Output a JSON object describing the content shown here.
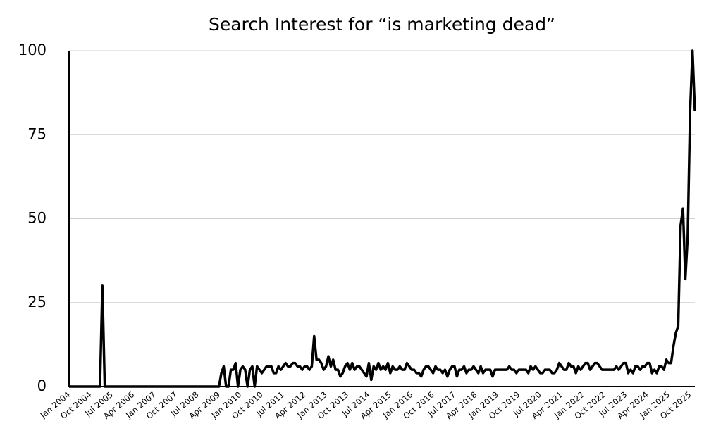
{
  "chart_data": {
    "type": "line",
    "title": "Search Interest for “is marketing dead”",
    "categories": [
      "Jan 2004",
      null,
      null,
      null,
      null,
      null,
      null,
      null,
      null,
      "Oct 2004",
      null,
      null,
      null,
      null,
      null,
      null,
      null,
      null,
      "Jul 2005",
      null,
      null,
      null,
      null,
      null,
      null,
      null,
      null,
      "Apr 2006",
      null,
      null,
      null,
      null,
      null,
      null,
      null,
      null,
      "Jan 2007",
      null,
      null,
      null,
      null,
      null,
      null,
      null,
      null,
      "Oct 2007",
      null,
      null,
      null,
      null,
      null,
      null,
      null,
      null,
      "Jul 2008",
      null,
      null,
      null,
      null,
      null,
      null,
      null,
      null,
      "Apr 2009",
      null,
      null,
      null,
      null,
      null,
      null,
      null,
      null,
      "Jan 2010",
      null,
      null,
      null,
      null,
      null,
      null,
      null,
      null,
      "Oct 2010",
      null,
      null,
      null,
      null,
      null,
      null,
      null,
      null,
      "Jul 2011",
      null,
      null,
      null,
      null,
      null,
      null,
      null,
      null,
      "Apr 2012",
      null,
      null,
      null,
      null,
      null,
      null,
      null,
      null,
      "Jan 2013",
      null,
      null,
      null,
      null,
      null,
      null,
      null,
      null,
      "Oct 2013",
      null,
      null,
      null,
      null,
      null,
      null,
      null,
      null,
      "Jul 2014",
      null,
      null,
      null,
      null,
      null,
      null,
      null,
      null,
      "Apr 2015",
      null,
      null,
      null,
      null,
      null,
      null,
      null,
      null,
      "Jan 2016",
      null,
      null,
      null,
      null,
      null,
      null,
      null,
      null,
      "Oct 2016",
      null,
      null,
      null,
      null,
      null,
      null,
      null,
      null,
      "Jul 2017",
      null,
      null,
      null,
      null,
      null,
      null,
      null,
      null,
      "Apr 2018",
      null,
      null,
      null,
      null,
      null,
      null,
      null,
      null,
      "Jan 2019",
      null,
      null,
      null,
      null,
      null,
      null,
      null,
      null,
      "Oct 2019",
      null,
      null,
      null,
      null,
      null,
      null,
      null,
      null,
      "Jul 2020",
      null,
      null,
      null,
      null,
      null,
      null,
      null,
      null,
      "Apr 2021",
      null,
      null,
      null,
      null,
      null,
      null,
      null,
      null,
      "Jan 2022",
      null,
      null,
      null,
      null,
      null,
      null,
      null,
      null,
      "Oct 2022",
      null,
      null,
      null,
      null,
      null,
      null,
      null,
      null,
      "Jul 2023",
      null,
      null,
      null,
      null,
      null,
      null,
      null,
      null,
      "Apr 2024",
      null,
      null,
      null,
      null,
      null,
      null,
      null,
      null,
      "Jan 2025",
      null,
      null,
      null,
      null,
      null,
      null,
      null,
      null,
      "Oct 2025",
      null,
      null
    ],
    "values": [
      0,
      0,
      0,
      0,
      0,
      0,
      0,
      0,
      0,
      0,
      0,
      0,
      0,
      0,
      30,
      0,
      0,
      0,
      0,
      0,
      0,
      0,
      0,
      0,
      0,
      0,
      0,
      0,
      0,
      0,
      0,
      0,
      0,
      0,
      0,
      0,
      0,
      0,
      0,
      0,
      0,
      0,
      0,
      0,
      0,
      0,
      0,
      0,
      0,
      0,
      0,
      0,
      0,
      0,
      0,
      0,
      0,
      0,
      0,
      0,
      0,
      0,
      0,
      0,
      4,
      6,
      0,
      0,
      5,
      5,
      7,
      0,
      5,
      6,
      5,
      0,
      5,
      6,
      0,
      6,
      5,
      4,
      5,
      6,
      6,
      6,
      4,
      4,
      6,
      5,
      6,
      7,
      6,
      6,
      7,
      7,
      6,
      6,
      5,
      6,
      6,
      5,
      6,
      15,
      8,
      8,
      7,
      5,
      6,
      9,
      6,
      8,
      5,
      5,
      3,
      4,
      6,
      7,
      5,
      7,
      5,
      6,
      6,
      5,
      4,
      3,
      7,
      2,
      6,
      5,
      7,
      5,
      6,
      5,
      7,
      4,
      6,
      5,
      5,
      6,
      5,
      5,
      7,
      6,
      5,
      5,
      4,
      4,
      3,
      5,
      6,
      6,
      5,
      4,
      6,
      5,
      5,
      4,
      5,
      3,
      5,
      6,
      6,
      3,
      5,
      5,
      6,
      4,
      5,
      5,
      6,
      5,
      4,
      6,
      4,
      5,
      5,
      5,
      3,
      5,
      5,
      5,
      5,
      5,
      5,
      6,
      5,
      5,
      4,
      5,
      5,
      5,
      5,
      4,
      6,
      5,
      6,
      5,
      4,
      4,
      5,
      5,
      5,
      4,
      4,
      5,
      7,
      6,
      5,
      5,
      7,
      6,
      6,
      4,
      6,
      5,
      6,
      7,
      7,
      5,
      6,
      7,
      7,
      6,
      5,
      5,
      5,
      5,
      5,
      5,
      6,
      5,
      6,
      7,
      7,
      4,
      5,
      4,
      6,
      6,
      5,
      6,
      6,
      7,
      7,
      4,
      5,
      4,
      6,
      6,
      5,
      8,
      7,
      7,
      12,
      16,
      18,
      48,
      53,
      32,
      45,
      82,
      100,
      82
    ],
    "color": "#000000",
    "ylim": [
      0,
      100
    ],
    "yticks": [
      0,
      25,
      50,
      75,
      100
    ],
    "grid": true
  }
}
